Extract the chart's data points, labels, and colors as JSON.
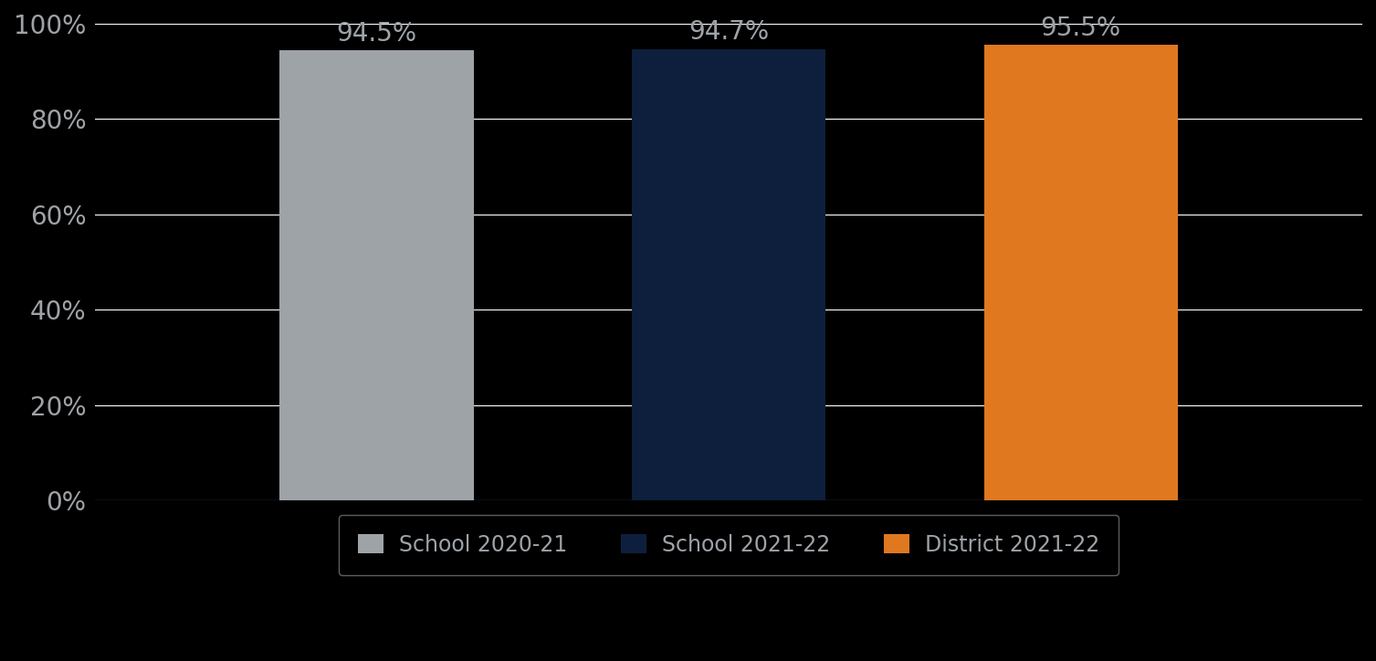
{
  "categories": [
    "School 2020-21",
    "School 2021-22",
    "District 2021-22"
  ],
  "values": [
    0.945,
    0.947,
    0.955
  ],
  "labels": [
    "94.5%",
    "94.7%",
    "95.5%"
  ],
  "bar_colors": [
    "#9EA3A8",
    "#0D1F3C",
    "#E07820"
  ],
  "background_color": "#000000",
  "text_color": "#9EA3A8",
  "label_color": "#9EA3A8",
  "ylim": [
    0,
    1.0
  ],
  "yticks": [
    0.0,
    0.2,
    0.4,
    0.6,
    0.8,
    1.0
  ],
  "ytick_labels": [
    "0%",
    "20%",
    "40%",
    "60%",
    "80%",
    "100%"
  ],
  "grid_color": "#ffffff",
  "legend_labels": [
    "School 2020-21",
    "School 2021-22",
    "District 2021-22"
  ],
  "label_fontsize": 20,
  "tick_fontsize": 20,
  "legend_fontsize": 17
}
